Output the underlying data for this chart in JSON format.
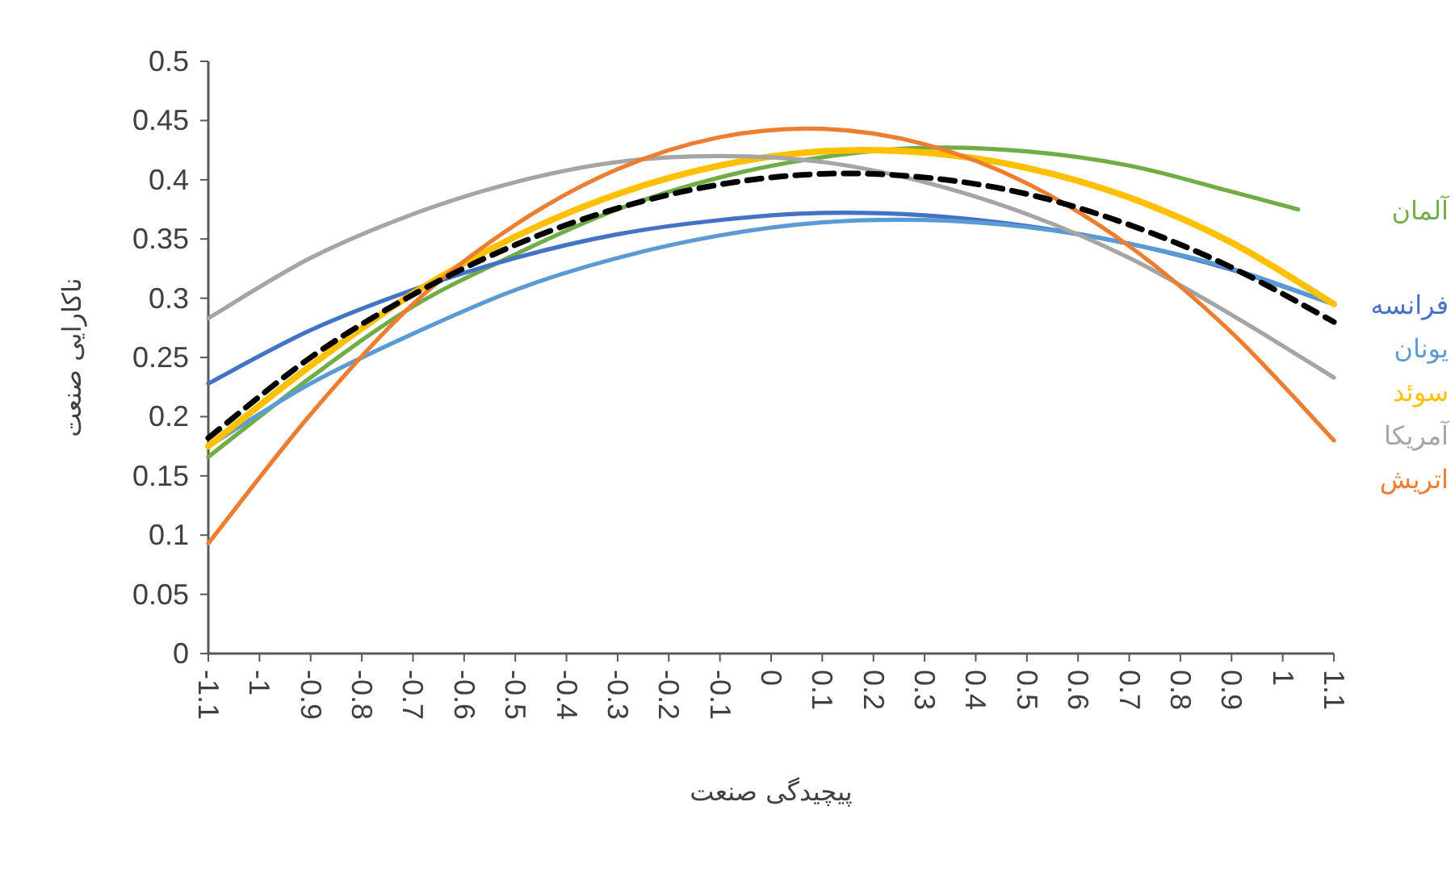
{
  "chart_data": {
    "type": "line",
    "xlabel": "پیچیدگی صنعت",
    "ylabel": "ناکارایی صنعت",
    "x": [
      -1.1,
      -0.9,
      -0.7,
      -0.5,
      -0.3,
      -0.1,
      0.1,
      0.3,
      0.5,
      0.7,
      0.9,
      1.1
    ],
    "xlim": [
      -1.1,
      1.1
    ],
    "xticks": [
      -1.1,
      -1,
      -0.9,
      -0.8,
      -0.7,
      -0.6,
      -0.5,
      -0.4,
      -0.3,
      -0.2,
      -0.1,
      0,
      0.1,
      0.2,
      0.3,
      0.4,
      0.5,
      0.6,
      0.7,
      0.8,
      0.9,
      1,
      1.1
    ],
    "ylim": [
      0,
      0.5
    ],
    "yticks": [
      0,
      0.05,
      0.1,
      0.15,
      0.2,
      0.25,
      0.3,
      0.35,
      0.4,
      0.45,
      0.5
    ],
    "grid": false,
    "legend": false,
    "marker": "none",
    "series": [
      {
        "name": "آلمان",
        "color": "#70ad47",
        "x": [
          -1.1,
          -0.9,
          -0.7,
          -0.5,
          -0.3,
          -0.1,
          0.1,
          0.3,
          0.5,
          0.7,
          0.9,
          1.03
        ],
        "values": [
          0.166,
          0.233,
          0.293,
          0.337,
          0.375,
          0.402,
          0.419,
          0.427,
          0.424,
          0.412,
          0.39,
          0.375
        ]
      },
      {
        "name": "فرانسه",
        "color": "#4472c4",
        "values": [
          0.228,
          0.273,
          0.307,
          0.334,
          0.354,
          0.366,
          0.372,
          0.37,
          0.361,
          0.346,
          0.324,
          0.295
        ]
      },
      {
        "name": "یونان",
        "color": "#5b9bd5",
        "values": [
          0.175,
          0.228,
          0.27,
          0.307,
          0.334,
          0.353,
          0.364,
          0.366,
          0.36,
          0.346,
          0.325,
          0.295
        ]
      },
      {
        "name": "سوئد",
        "color": "#ffc000",
        "values": [
          0.175,
          0.243,
          0.304,
          0.352,
          0.388,
          0.412,
          0.424,
          0.423,
          0.41,
          0.385,
          0.347,
          0.295
        ]
      },
      {
        "name": "آمریکا",
        "color": "#a5a5a5",
        "values": [
          0.283,
          0.334,
          0.371,
          0.398,
          0.415,
          0.42,
          0.415,
          0.398,
          0.371,
          0.334,
          0.286,
          0.233
        ]
      },
      {
        "name": "اتریش",
        "color": "#ed7d31",
        "values": [
          0.093,
          0.202,
          0.295,
          0.362,
          0.409,
          0.436,
          0.443,
          0.43,
          0.397,
          0.344,
          0.271,
          0.18
        ]
      },
      {
        "color": "#000000",
        "line_style": "dashed",
        "values": [
          0.182,
          0.25,
          0.303,
          0.345,
          0.376,
          0.396,
          0.405,
          0.402,
          0.388,
          0.362,
          0.326,
          0.28
        ]
      }
    ]
  }
}
